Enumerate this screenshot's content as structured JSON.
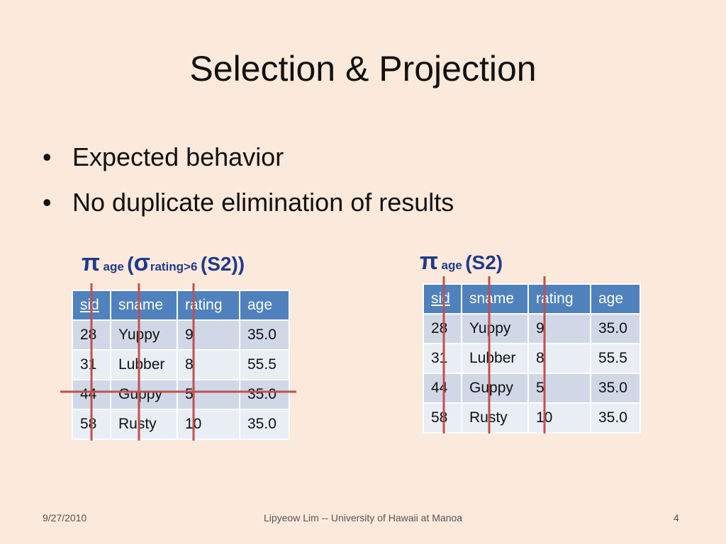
{
  "slide": {
    "title": "Selection & Projection",
    "bullets": [
      "Expected behavior",
      "No duplicate elimination of results"
    ]
  },
  "left_block": {
    "expr": {
      "pi": "π",
      "pi_sub": "age",
      "open_paren": "(",
      "sigma": "σ",
      "sigma_sub": "rating>6",
      "rest": "(S2))"
    },
    "table": {
      "headers": [
        "sid",
        "sname",
        "rating",
        "age"
      ],
      "rows": [
        [
          "28",
          "Yuppy",
          "9",
          "35.0"
        ],
        [
          "31",
          "Lubber",
          "8",
          "55.5"
        ],
        [
          "44",
          "Guppy",
          "5",
          "35.0"
        ],
        [
          "58",
          "Rusty",
          "10",
          "35.0"
        ]
      ]
    }
  },
  "right_block": {
    "expr": {
      "pi": "π",
      "pi_sub": "age",
      "rest": "(S2)"
    },
    "table": {
      "headers": [
        "sid",
        "sname",
        "rating",
        "age"
      ],
      "rows": [
        [
          "28",
          "Yuppy",
          "9",
          "35.0"
        ],
        [
          "31",
          "Lubber",
          "8",
          "55.5"
        ],
        [
          "44",
          "Guppy",
          "5",
          "35.0"
        ],
        [
          "58",
          "Rusty",
          "10",
          "35.0"
        ]
      ]
    }
  },
  "footer": {
    "date": "9/27/2010",
    "center": "Lipyeow Lim -- University of Hawaii at Manoa",
    "page": "4"
  },
  "colors": {
    "background": "#fbe9db",
    "header_fill": "#4f81bd",
    "row_odd": "#d0d8e8",
    "row_even": "#e9edf4",
    "expression_text": "#1f3a8a",
    "strike_line": "#c0504d"
  }
}
